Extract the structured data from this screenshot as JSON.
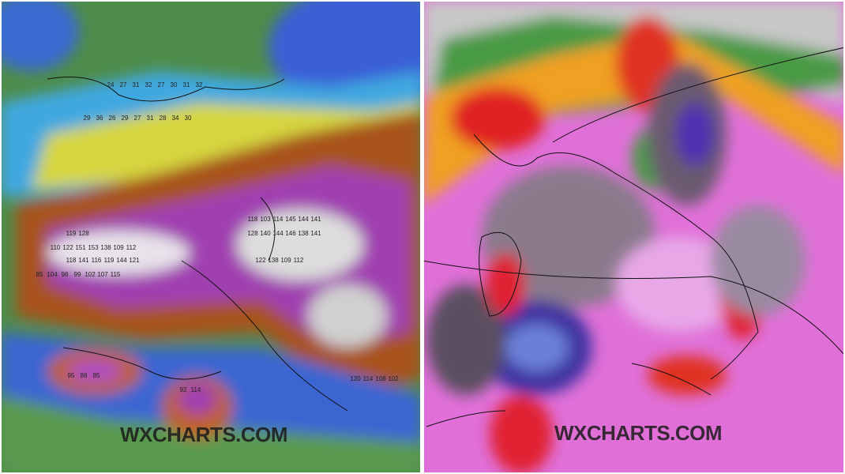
{
  "left_map": {
    "watermark": "WXCHARTS.COM",
    "gust_rows": [
      [
        24,
        27,
        31,
        32,
        27,
        30,
        31,
        32
      ],
      [
        29,
        36,
        26,
        29,
        27,
        31,
        28,
        34,
        30
      ],
      [
        119,
        128
      ],
      [
        110,
        122,
        151,
        153,
        138,
        109,
        112
      ],
      [
        118,
        141,
        116,
        119,
        144,
        121
      ],
      [
        85,
        104,
        98,
        99,
        102,
        107,
        115
      ],
      [
        118,
        103,
        114,
        145,
        144,
        141
      ],
      [
        128,
        140,
        144,
        146,
        138,
        141
      ],
      [
        122,
        138,
        109,
        112
      ],
      [
        95,
        88,
        85
      ],
      [
        92,
        114
      ],
      [
        120,
        114,
        108,
        102
      ]
    ]
  },
  "right_map": {
    "watermark": "WXCHARTS.COM"
  }
}
